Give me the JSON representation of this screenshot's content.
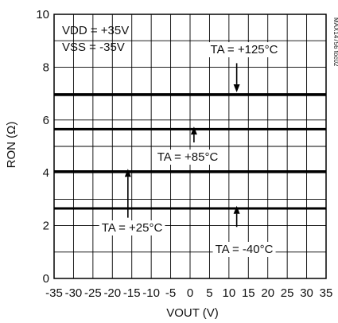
{
  "chart_data": {
    "type": "line",
    "title": "",
    "xlabel": "VOUT (V)",
    "ylabel": "RON (Ω)",
    "xlim": [
      -35,
      35
    ],
    "ylim": [
      0,
      10
    ],
    "x_ticks": [
      -35,
      -30,
      -25,
      -20,
      -15,
      -10,
      -5,
      0,
      5,
      10,
      15,
      20,
      25,
      30,
      35
    ],
    "y_ticks": [
      0,
      2,
      4,
      6,
      8,
      10
    ],
    "grid": true,
    "conditions": [
      "VDD = +35V",
      "VSS = -35V"
    ],
    "part_number": "MAX14756 toc02",
    "series": [
      {
        "name": "TA = +125°C",
        "x": [
          -35,
          -25,
          -15,
          -5,
          0,
          5,
          15,
          25,
          35
        ],
        "y": [
          6.95,
          6.95,
          6.95,
          6.95,
          6.95,
          6.95,
          6.95,
          6.95,
          6.95
        ]
      },
      {
        "name": "TA = +85°C",
        "x": [
          -35,
          -25,
          -15,
          -5,
          0,
          5,
          15,
          25,
          35
        ],
        "y": [
          5.65,
          5.65,
          5.65,
          5.65,
          5.65,
          5.65,
          5.65,
          5.65,
          5.65
        ]
      },
      {
        "name": "TA = +25°C",
        "x": [
          -35,
          -25,
          -15,
          -5,
          0,
          5,
          15,
          25,
          35
        ],
        "y": [
          4.05,
          4.05,
          4.05,
          4.05,
          4.05,
          4.05,
          4.05,
          4.05,
          4.05
        ]
      },
      {
        "name": "TA = -40°C",
        "x": [
          -35,
          -25,
          -15,
          -5,
          0,
          5,
          15,
          25,
          35
        ],
        "y": [
          2.65,
          2.65,
          2.65,
          2.65,
          2.65,
          2.65,
          2.65,
          2.65,
          2.65
        ]
      }
    ],
    "annotations": [
      {
        "text": "TA = +125°C",
        "arrow_x": 12,
        "arrow_from_y": 8.15,
        "arrow_to_y": 7.05
      },
      {
        "text": "TA = +85°C",
        "arrow_x": 1,
        "arrow_from_y": 5.15,
        "arrow_to_y": 5.75
      },
      {
        "text": "TA = +25°C",
        "arrow_x": -16,
        "arrow_from_y": 2.3,
        "arrow_to_y": 4.15
      },
      {
        "text": "TA = -40°C",
        "arrow_x": 12,
        "arrow_from_y": 1.95,
        "arrow_to_y": 2.75
      }
    ]
  }
}
